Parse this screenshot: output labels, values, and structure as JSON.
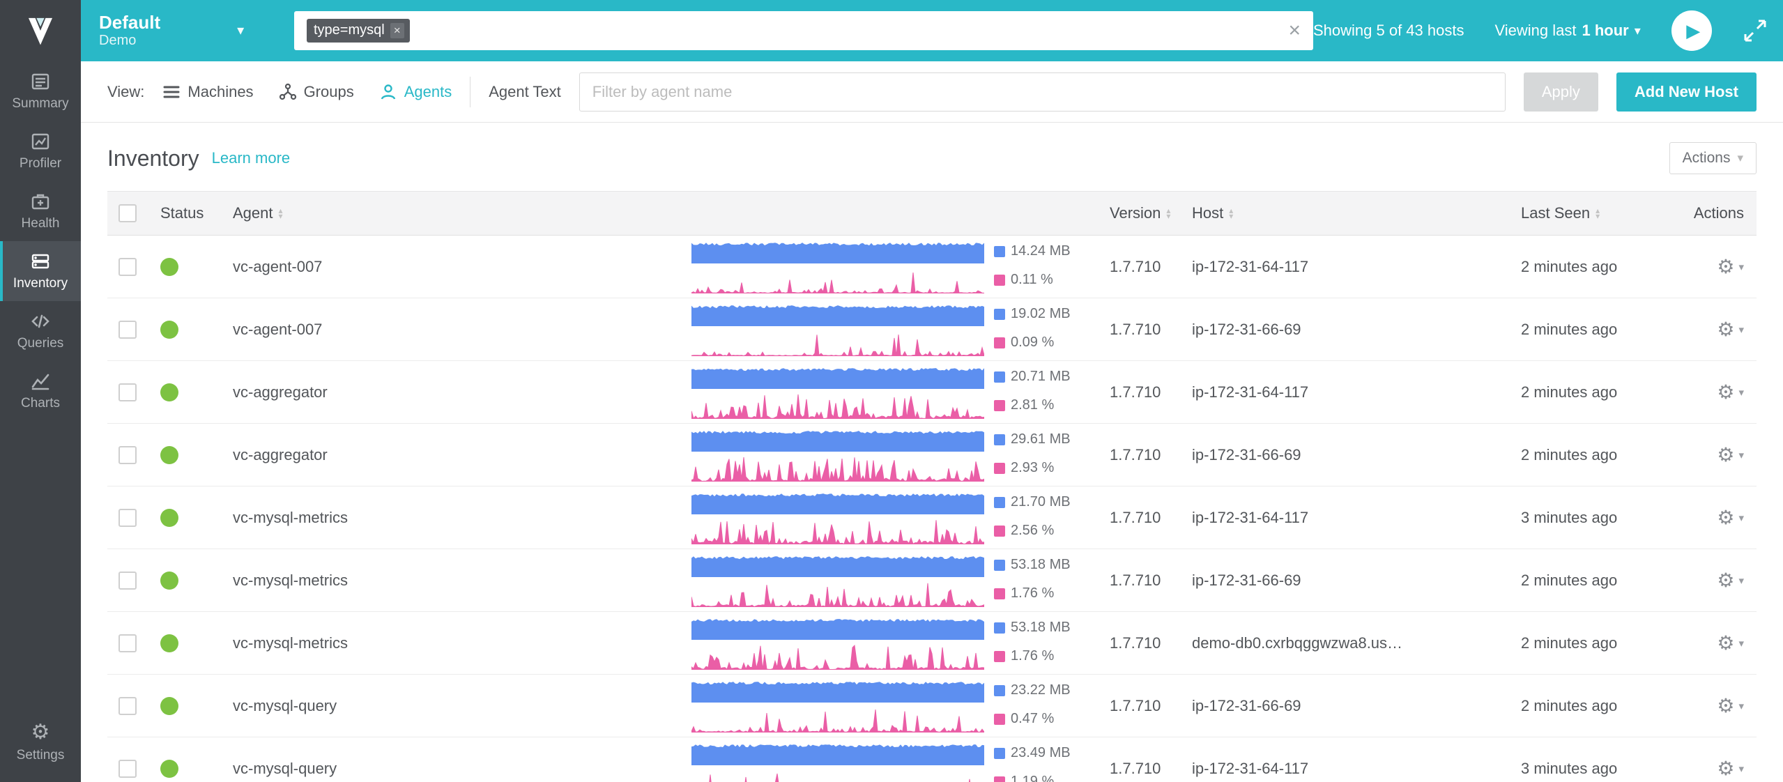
{
  "colors": {
    "teal": "#29b8c7",
    "dark": "#3e4247",
    "green": "#7dc242",
    "blue": "#5d8ff0",
    "pink": "#ea5ea6"
  },
  "icons": {
    "gear": "⚙",
    "caret_down": "▾",
    "close": "×",
    "play": "▶",
    "sort_asc": "▴",
    "sort_desc": "▾",
    "code": "</>"
  },
  "topbar": {
    "env_name": "Default",
    "env_sub": "Demo",
    "search_tag": "type=mysql",
    "showing": "Showing 5 of 43 hosts",
    "viewing_prefix": "Viewing last",
    "viewing_value": "1 hour"
  },
  "sidebar": {
    "items": [
      {
        "label": "Summary"
      },
      {
        "label": "Profiler"
      },
      {
        "label": "Health"
      },
      {
        "label": "Inventory"
      },
      {
        "label": "Queries"
      },
      {
        "label": "Charts"
      }
    ],
    "settings_label": "Settings"
  },
  "toolbar": {
    "view_label": "View:",
    "views": [
      {
        "label": "Machines"
      },
      {
        "label": "Groups"
      },
      {
        "label": "Agents"
      }
    ],
    "agent_text_label": "Agent Text",
    "filter_placeholder": "Filter by agent name",
    "apply_label": "Apply",
    "add_host_label": "Add New Host"
  },
  "page": {
    "title": "Inventory",
    "learn_more": "Learn more",
    "actions_label": "Actions"
  },
  "table": {
    "headers": {
      "status": "Status",
      "agent": "Agent",
      "version": "Version",
      "host": "Host",
      "last_seen": "Last Seen",
      "actions": "Actions"
    },
    "rows": [
      {
        "agent": "vc-agent-007",
        "memory": "14.24 MB",
        "cpu": "0.11 %",
        "version": "1.7.710",
        "host": "ip-172-31-64-117",
        "last_seen": "2 minutes ago"
      },
      {
        "agent": "vc-agent-007",
        "memory": "19.02 MB",
        "cpu": "0.09 %",
        "version": "1.7.710",
        "host": "ip-172-31-66-69",
        "last_seen": "2 minutes ago"
      },
      {
        "agent": "vc-aggregator",
        "memory": "20.71 MB",
        "cpu": "2.81 %",
        "version": "1.7.710",
        "host": "ip-172-31-64-117",
        "last_seen": "2 minutes ago"
      },
      {
        "agent": "vc-aggregator",
        "memory": "29.61 MB",
        "cpu": "2.93 %",
        "version": "1.7.710",
        "host": "ip-172-31-66-69",
        "last_seen": "2 minutes ago"
      },
      {
        "agent": "vc-mysql-metrics",
        "memory": "21.70 MB",
        "cpu": "2.56 %",
        "version": "1.7.710",
        "host": "ip-172-31-64-117",
        "last_seen": "3 minutes ago"
      },
      {
        "agent": "vc-mysql-metrics",
        "memory": "53.18 MB",
        "cpu": "1.76 %",
        "version": "1.7.710",
        "host": "ip-172-31-66-69",
        "last_seen": "2 minutes ago"
      },
      {
        "agent": "vc-mysql-metrics",
        "memory": "53.18 MB",
        "cpu": "1.76 %",
        "version": "1.7.710",
        "host": "demo-db0.cxrbqggwzwa8.us…",
        "last_seen": "2 minutes ago"
      },
      {
        "agent": "vc-mysql-query",
        "memory": "23.22 MB",
        "cpu": "0.47 %",
        "version": "1.7.710",
        "host": "ip-172-31-66-69",
        "last_seen": "2 minutes ago"
      },
      {
        "agent": "vc-mysql-query",
        "memory": "23.49 MB",
        "cpu": "1.19 %",
        "version": "1.7.710",
        "host": "ip-172-31-64-117",
        "last_seen": "3 minutes ago"
      }
    ]
  }
}
